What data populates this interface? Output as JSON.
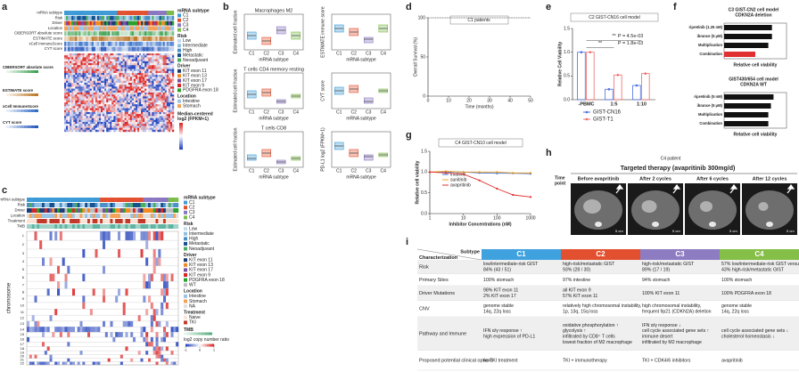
{
  "panels": {
    "a": {
      "label": "a",
      "rows": [
        "mRNA subtype",
        "Risk",
        "Driver",
        "Location",
        "CIBERSORT absolute score",
        "ESTIMATE score",
        "xCell ImmuneScore",
        "CYT score"
      ],
      "side_labels": [
        "CIBERSORT absolute score",
        "ESTIMATE score",
        "xCell ImmuneScore",
        "CYT score"
      ],
      "legend": [
        {
          "title": "mRNA subtype",
          "items": [
            {
              "name": "C1",
              "color": "#3d9ad6"
            },
            {
              "name": "C2",
              "color": "#e2502f"
            },
            {
              "name": "C3",
              "color": "#8a77c1"
            },
            {
              "name": "C4",
              "color": "#7cbd4a"
            }
          ]
        },
        {
          "title": "Risk",
          "items": [
            {
              "name": "Low",
              "color": "#c6dbef"
            },
            {
              "name": "Intermediate",
              "color": "#8fbfe0"
            },
            {
              "name": "High",
              "color": "#4a8fc8"
            },
            {
              "name": "Metastatic",
              "color": "#15508f"
            },
            {
              "name": "Neoadjuvant",
              "color": "#4bab5e"
            }
          ]
        },
        {
          "title": "Driver",
          "items": [
            {
              "name": "KIT exon 11",
              "color": "#1f3b73"
            },
            {
              "name": "KIT exon 13",
              "color": "#f08a24"
            },
            {
              "name": "KIT exon 17",
              "color": "#7b4fa0"
            },
            {
              "name": "KIT exon 9",
              "color": "#d62728"
            },
            {
              "name": "PDGFRA exon 18",
              "color": "#2ca02c"
            }
          ]
        },
        {
          "title": "Location",
          "items": [
            {
              "name": "Intestine",
              "color": "#9dc3e6"
            },
            {
              "name": "Stomach",
              "color": "#f4a259"
            }
          ]
        }
      ],
      "scale_title": [
        "Median-centered",
        "log2 (FPKM+1)"
      ]
    },
    "b": {
      "label": "b",
      "x_label": "mRNA subtype",
      "categories": [
        "C1",
        "C2",
        "C3",
        "C4"
      ],
      "colors": [
        "#3d9ad6",
        "#e2502f",
        "#8a77c1",
        "#7cbd4a"
      ],
      "ylim": [
        0,
        1
      ],
      "plots": [
        {
          "title": "Macrophages M2",
          "y_label": "Estimated cell fraction",
          "boxes": [
            [
              0.3,
              0.4,
              0.5
            ],
            [
              0.15,
              0.25,
              0.35
            ],
            [
              0.45,
              0.55,
              0.65
            ],
            [
              0.3,
              0.4,
              0.5
            ]
          ]
        },
        {
          "y_label": "ESTIMATE immune score",
          "boxes": [
            [
              0.5,
              0.6,
              0.7
            ],
            [
              0.4,
              0.5,
              0.6
            ],
            [
              0.2,
              0.3,
              0.35
            ],
            [
              0.5,
              0.6,
              0.7
            ]
          ]
        },
        {
          "title": "T cells CD4 memory resting",
          "y_label": "Estimated cell fraction",
          "boxes": [
            [
              0.3,
              0.4,
              0.5
            ],
            [
              0.35,
              0.45,
              0.55
            ],
            [
              0.15,
              0.2,
              0.25
            ],
            [
              0.3,
              0.35,
              0.4
            ]
          ]
        },
        {
          "y_label": "CYT score",
          "boxes": [
            [
              0.4,
              0.5,
              0.6
            ],
            [
              0.45,
              0.55,
              0.65
            ],
            [
              0.15,
              0.2,
              0.3
            ],
            [
              0.45,
              0.5,
              0.55
            ]
          ]
        },
        {
          "title": "T cells CD8",
          "y_label": "Estimated cell fraction",
          "boxes": [
            [
              0.2,
              0.25,
              0.35
            ],
            [
              0.3,
              0.4,
              0.5
            ],
            [
              0.1,
              0.15,
              0.2
            ],
            [
              0.2,
              0.25,
              0.3
            ]
          ]
        },
        {
          "y_label": "PD-L1 log2 (FPKM+1)",
          "boxes": [
            [
              0.5,
              0.6,
              0.7
            ],
            [
              0.3,
              0.4,
              0.5
            ],
            [
              0.2,
              0.3,
              0.35
            ],
            [
              0.3,
              0.35,
              0.4
            ]
          ]
        }
      ]
    },
    "c": {
      "label": "c",
      "rows": [
        "mRNA subtype",
        "Risk",
        "Driver",
        "Location",
        "Treatment",
        "TMB"
      ],
      "y_label": "chromosome",
      "chromosomes": [
        "1",
        "2",
        "3",
        "4",
        "5",
        "6",
        "7",
        "8",
        "9",
        "10",
        "11",
        "12",
        "13",
        "14",
        "15",
        "16",
        "17",
        "18",
        "19",
        "20",
        "21",
        "22"
      ],
      "legend": [
        {
          "title": "mRNA subtype",
          "items": [
            {
              "name": "C1",
              "color": "#3d9ad6"
            },
            {
              "name": "C2",
              "color": "#e2502f"
            },
            {
              "name": "C3",
              "color": "#8a77c1"
            },
            {
              "name": "C4",
              "color": "#7cbd4a"
            }
          ]
        },
        {
          "title": "Risk",
          "items": [
            {
              "name": "Low",
              "color": "#c6dbef"
            },
            {
              "name": "Intermediate",
              "color": "#8fbfe0"
            },
            {
              "name": "High",
              "color": "#4a8fc8"
            },
            {
              "name": "Metastatic",
              "color": "#15508f"
            },
            {
              "name": "Neoadjuvant",
              "color": "#4bab5e"
            }
          ]
        },
        {
          "title": "Driver",
          "items": [
            {
              "name": "KIT exon 11",
              "color": "#1f3b73"
            },
            {
              "name": "KIT exon 13",
              "color": "#f08a24"
            },
            {
              "name": "KIT exon 17",
              "color": "#7b4fa0"
            },
            {
              "name": "KIT exon 9",
              "color": "#d62728"
            },
            {
              "name": "PDGFRA exon 18",
              "color": "#2ca02c"
            },
            {
              "name": "WT",
              "color": "#bdbdbd"
            }
          ]
        },
        {
          "title": "Location",
          "items": [
            {
              "name": "Intestine",
              "color": "#9dc3e6"
            },
            {
              "name": "Stomach",
              "color": "#f4a259"
            },
            {
              "name": "NA",
              "color": "#e0e0e0"
            }
          ]
        },
        {
          "title": "Treatment",
          "items": [
            {
              "name": "Naive",
              "color": "#fbe3d6"
            },
            {
              "name": "TKI",
              "color": "#c0392b"
            }
          ]
        }
      ],
      "tmb_title": "TMB",
      "scale_title": "log2 copy number ratio",
      "scale_lim": [
        -1,
        1
      ],
      "scale_ticks": [
        -1,
        0,
        1
      ]
    },
    "d": {
      "label": "d",
      "title": "C1 patients",
      "x_label": "Time (months)",
      "y_label": "Overall Survival (%)",
      "x": [
        0,
        50
      ],
      "values": [
        100,
        100
      ],
      "xlim": [
        0,
        50
      ],
      "ylim": [
        0,
        100
      ],
      "xticks": [
        0,
        10,
        20,
        30,
        40,
        50
      ],
      "yticks": [
        0,
        50,
        100
      ],
      "color": "#555555"
    },
    "e": {
      "label": "e",
      "title": "C2 GIST-CN16 cell model",
      "y_label": "Relative Cell Viability",
      "categories": [
        "-PBMC",
        "1:5",
        "1:10"
      ],
      "series": [
        {
          "name": "GIST-CN16",
          "color": "#4a6fe3",
          "values": [
            1.0,
            0.22,
            0.3
          ]
        },
        {
          "name": "GIST-T1",
          "color": "#f06b6b",
          "values": [
            1.0,
            0.52,
            0.55
          ]
        }
      ],
      "ylim": [
        0,
        1.5
      ],
      "yticks": [
        {
          "value": 0,
          "label": "0.0"
        },
        {
          "value": 0.5,
          "label": "0.5"
        },
        {
          "value": 1,
          "label": "1.0"
        },
        {
          "value": 1.5,
          "label": "1.5"
        }
      ],
      "annotations": [
        "**",
        "**",
        "P = 1.8e-03",
        "P = 4.5e-03"
      ]
    },
    "f": {
      "label": "f",
      "x_label": "Relative cell viability",
      "xlim": [
        0,
        1.2
      ],
      "charts": [
        {
          "title": [
            "C3 GIST-CN2 cell model",
            "CDKN2A deletion"
          ],
          "categories": [
            "ripretinib (1.25 nM)",
            "ibrance (5 μM)",
            "Multiplication",
            "Combination"
          ],
          "values": [
            0.92,
            0.92,
            0.85,
            0.6
          ],
          "colors": [
            "#111111",
            "#111111",
            "#111111",
            "#e03030"
          ]
        },
        {
          "title": [
            "GIST430/654 cell model",
            "CDKN2A WT"
          ],
          "categories": [
            "ripretinib (5 nM)",
            "ibrance (5 μM)",
            "Multiplication",
            "Combination"
          ],
          "values": [
            0.95,
            0.9,
            0.85,
            0.85
          ],
          "colors": [
            "#111111",
            "#111111",
            "#111111",
            "#111111"
          ]
        }
      ]
    },
    "g": {
      "label": "g",
      "title": "C4 GIST-CN10 cell model",
      "x_label": "Inhibitor Concentrations (nM)",
      "y_label": "Relative cell viability",
      "log_x": true,
      "x": [
        1,
        3,
        10,
        30,
        100,
        300,
        1000
      ],
      "series": [
        {
          "name": "imatinib",
          "color": "#3a6fd8",
          "values": [
            1.0,
            1.0,
            1.0,
            0.98,
            0.97,
            0.97,
            0.96
          ]
        },
        {
          "name": "sunitinib",
          "color": "#f0a020",
          "values": [
            1.0,
            1.02,
            1.0,
            1.0,
            1.0,
            0.98,
            0.98
          ]
        },
        {
          "name": "avapritinib",
          "color": "#e03030",
          "values": [
            1.0,
            0.98,
            0.95,
            0.8,
            0.6,
            0.45,
            0.4
          ]
        }
      ],
      "xlim": [
        1,
        1000
      ],
      "ylim": [
        0,
        1.5
      ],
      "xticks": [
        1,
        10,
        100,
        1000
      ],
      "yticks": [
        {
          "value": 0,
          "label": "0.0"
        },
        {
          "value": 0.5,
          "label": "0.5"
        },
        {
          "value": 1,
          "label": "1.0"
        },
        {
          "value": 1.5,
          "label": "1.5"
        }
      ]
    },
    "h": {
      "label": "h",
      "subtitle": "C4 patient",
      "title": "Targeted therapy (avapritinib 300mg/d)",
      "time_label": [
        "Time",
        "point"
      ],
      "columns": [
        "Before avapritinib",
        "After 2 cycles",
        "After 6 cycles",
        "After 12 cycles"
      ],
      "scale_label": "5 cm"
    },
    "i": {
      "label": "i",
      "header_top": "Subtype",
      "header_left": "Characterization",
      "columns": [
        {
          "name": "C1",
          "color": "#3fa2df"
        },
        {
          "name": "C2",
          "color": "#e2502f"
        },
        {
          "name": "C3",
          "color": "#8e7cc3"
        },
        {
          "name": "C4",
          "color": "#86bf47"
        }
      ],
      "rows": [
        {
          "label": "Risk",
          "cells": [
            [
              "low/intermediate-risk GIST",
              "84% (43 / 51)"
            ],
            [
              "high-risk/metastatic GIST",
              "93% (28 / 30)"
            ],
            [
              "high-risk/metastatic GIST",
              "89% (17 / 19)"
            ],
            [
              "57% low/intermediate-risk GIST versus",
              "43% high-risk/metastatic GIST"
            ]
          ]
        },
        {
          "label": "Primary Sites",
          "cells": [
            [
              "100% stomach"
            ],
            [
              "97% intestine"
            ],
            [
              "94% stomach"
            ],
            [
              "100% stomach"
            ]
          ]
        },
        {
          "label": "Driver Mutations",
          "cells": [
            [
              "98% KIT exon 11",
              "2% KIT exon 17"
            ],
            [
              "all KIT exon 9",
              "57% KIT exon 11"
            ],
            [
              "100% KIT exon 11"
            ],
            [
              "100% PDGFRA exon 18"
            ]
          ]
        },
        {
          "label": "CNV",
          "cells": [
            [
              "genome stable",
              "14q, 22q loss"
            ],
            [
              "relatively high chromosomal instability,",
              "1p, 13q, 15q loss"
            ],
            [
              "high chromosomal instability,",
              "frequent 9p21 (CDKN2A) deletion"
            ],
            [
              "genome stable",
              "14q, 22q loss"
            ]
          ]
        },
        {
          "label": "Pathway and Immune",
          "cells": [
            [
              "IFN α/γ response ↑",
              "high expression of PD-L1"
            ],
            [
              "oxidative phosphorylation ↑",
              "glycolysis ↑",
              "infiltrated by CD8⁺ T cells",
              "lowest fraction of M2 macrophage"
            ],
            [
              "IFN α/γ response ↓",
              "cell cycle associated gene sets ↑",
              "immune desert",
              "infiltrated by M2 macrophage"
            ],
            [
              "cell cycle associated gene sets ↓",
              "cholesterol homeostasis ↓"
            ]
          ]
        },
        {
          "label": "Proposed potential clinical options",
          "cells": [
            [
              "no TKI treatment"
            ],
            [
              "TKI + immunotherapy"
            ],
            [
              "TKI + CDK4/6 inhibitors"
            ],
            [
              "avapritinib"
            ]
          ]
        }
      ]
    }
  }
}
